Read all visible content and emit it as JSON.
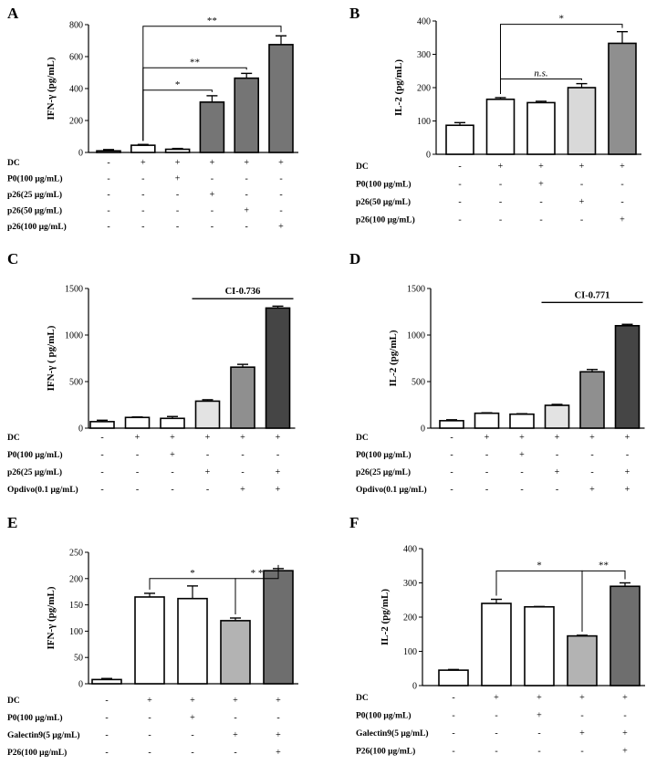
{
  "chart_data": [
    {
      "id": "A",
      "type": "bar",
      "ylabel": "IFN-γ (pg/mL)",
      "ylim": [
        0,
        800
      ],
      "yticks": [
        0,
        200,
        400,
        600,
        800
      ],
      "values": [
        10,
        45,
        20,
        315,
        465,
        675
      ],
      "errors": [
        8,
        5,
        5,
        40,
        30,
        55
      ],
      "colors": [
        "#ffffff",
        "#ffffff",
        "#ffffff",
        "#757575",
        "#757575",
        "#757575"
      ],
      "conditions": [
        {
          "label": "DC",
          "signs": [
            "-",
            "+",
            "+",
            "+",
            "+",
            "+"
          ]
        },
        {
          "label": "P0(100 μg/mL)",
          "signs": [
            "-",
            "-",
            "+",
            "-",
            "-",
            "-"
          ]
        },
        {
          "label": "p26(25 μg/mL)",
          "signs": [
            "-",
            "-",
            "-",
            "+",
            "-",
            "-"
          ]
        },
        {
          "label": "p26(50 μg/mL)",
          "signs": [
            "-",
            "-",
            "-",
            "-",
            "+",
            "-"
          ]
        },
        {
          "label": "p26(100 μg/mL)",
          "signs": [
            "-",
            "-",
            "-",
            "-",
            "-",
            "+"
          ]
        }
      ],
      "brackets": [
        {
          "from": 1,
          "to": 5,
          "level": 790,
          "label": "**"
        },
        {
          "from": 1,
          "to": 4,
          "level": 530,
          "label": "**"
        },
        {
          "from": 1,
          "to": 3,
          "level": 390,
          "label": "*"
        }
      ]
    },
    {
      "id": "B",
      "type": "bar",
      "ylabel": "IL-2 (pg/mL)",
      "ylim": [
        0,
        400
      ],
      "yticks": [
        0,
        100,
        200,
        300,
        400
      ],
      "values": [
        87,
        165,
        155,
        200,
        333
      ],
      "errors": [
        8,
        5,
        4,
        12,
        35
      ],
      "colors": [
        "#ffffff",
        "#ffffff",
        "#ffffff",
        "#d9d9d9",
        "#8f8f8f"
      ],
      "conditions": [
        {
          "label": "DC",
          "signs": [
            "-",
            "+",
            "+",
            "+",
            "+"
          ]
        },
        {
          "label": "P0(100 μg/mL)",
          "signs": [
            "-",
            "-",
            "+",
            "-",
            "-"
          ]
        },
        {
          "label": "p26(50 μg/mL)",
          "signs": [
            "-",
            "-",
            "-",
            "+",
            "-"
          ]
        },
        {
          "label": "p26(100 μg/mL)",
          "signs": [
            "-",
            "-",
            "-",
            "-",
            "+"
          ]
        }
      ],
      "brackets": [
        {
          "from": 1,
          "to": 4,
          "level": 390,
          "label": "*"
        },
        {
          "from": 1,
          "to": 3,
          "level": 226,
          "label": "n.s."
        }
      ]
    },
    {
      "id": "C",
      "type": "bar",
      "ylabel": "IFN-γ ( pg/mL)",
      "ylim": [
        0,
        1500
      ],
      "yticks": [
        0,
        500,
        1000,
        1500
      ],
      "values": [
        70,
        115,
        105,
        290,
        655,
        1290
      ],
      "errors": [
        15,
        5,
        20,
        15,
        30,
        20
      ],
      "colors": [
        "#ffffff",
        "#ffffff",
        "#ffffff",
        "#e3e3e3",
        "#8f8f8f",
        "#454545"
      ],
      "conditions": [
        {
          "label": "DC",
          "signs": [
            "-",
            "+",
            "+",
            "+",
            "+",
            "+"
          ]
        },
        {
          "label": "P0(100 μg/mL)",
          "signs": [
            "-",
            "-",
            "+",
            "-",
            "-",
            "-"
          ]
        },
        {
          "label": "p26(25 μg/mL)",
          "signs": [
            "-",
            "-",
            "-",
            "+",
            "-",
            "+"
          ]
        },
        {
          "label": "Opdivo(0.1 μg/mL)",
          "signs": [
            "-",
            "-",
            "-",
            "-",
            "+",
            "+"
          ]
        }
      ],
      "ci": {
        "from": 3,
        "to": 5,
        "label": "CI-0.736",
        "level": 1390
      }
    },
    {
      "id": "D",
      "type": "bar",
      "ylabel": "IL-2 (pg/mL)",
      "ylim": [
        0,
        1500
      ],
      "yticks": [
        0,
        500,
        1000,
        1500
      ],
      "values": [
        80,
        160,
        150,
        245,
        605,
        1100
      ],
      "errors": [
        10,
        5,
        5,
        10,
        25,
        15
      ],
      "colors": [
        "#ffffff",
        "#ffffff",
        "#ffffff",
        "#e3e3e3",
        "#8f8f8f",
        "#454545"
      ],
      "conditions": [
        {
          "label": "DC",
          "signs": [
            "-",
            "+",
            "+",
            "+",
            "+",
            "+"
          ]
        },
        {
          "label": "P0(100 μg/mL)",
          "signs": [
            "-",
            "-",
            "+",
            "-",
            "-",
            "-"
          ]
        },
        {
          "label": "p26(25 μg/mL)",
          "signs": [
            "-",
            "-",
            "-",
            "+",
            "-",
            "+"
          ]
        },
        {
          "label": "Opdivo(0.1 μg/mL)",
          "signs": [
            "-",
            "-",
            "-",
            "-",
            "+",
            "+"
          ]
        }
      ],
      "ci": {
        "from": 3,
        "to": 5,
        "label": "CI-0.771",
        "level": 1350
      }
    },
    {
      "id": "E",
      "type": "bar",
      "ylabel": "IFN-γ (pg/mL)",
      "ylim": [
        0,
        250
      ],
      "yticks": [
        0,
        50,
        100,
        150,
        200,
        250
      ],
      "values": [
        8,
        165,
        162,
        120,
        215
      ],
      "errors": [
        2,
        7,
        24,
        5,
        4
      ],
      "colors": [
        "#ffffff",
        "#ffffff",
        "#ffffff",
        "#b3b3b3",
        "#6e6e6e"
      ],
      "conditions": [
        {
          "label": "DC",
          "signs": [
            "-",
            "+",
            "+",
            "+",
            "+"
          ]
        },
        {
          "label": "P0(100 μg/mL)",
          "signs": [
            "-",
            "-",
            "+",
            "-",
            "-"
          ]
        },
        {
          "label": "Galectin9(5 μg/mL)",
          "signs": [
            "-",
            "-",
            "-",
            "+",
            "+"
          ]
        },
        {
          "label": "P26(100 μg/mL)",
          "signs": [
            "-",
            "-",
            "-",
            "-",
            "+"
          ]
        }
      ],
      "brackets": [
        {
          "from": 1,
          "to": 3,
          "level": 200,
          "label": "*"
        },
        {
          "from": 3,
          "to": 4,
          "level": 200,
          "label": "* *"
        }
      ]
    },
    {
      "id": "F",
      "type": "bar",
      "ylabel": "IL-2 (pg/mL)",
      "ylim": [
        0,
        400
      ],
      "yticks": [
        0,
        100,
        200,
        300,
        400
      ],
      "values": [
        45,
        240,
        230,
        145,
        290
      ],
      "errors": [
        2,
        12,
        1,
        2,
        10
      ],
      "colors": [
        "#ffffff",
        "#ffffff",
        "#ffffff",
        "#b3b3b3",
        "#6e6e6e"
      ],
      "conditions": [
        {
          "label": "DC",
          "signs": [
            "-",
            "+",
            "+",
            "+",
            "+"
          ]
        },
        {
          "label": "P0(100 μg/mL)",
          "signs": [
            "-",
            "-",
            "+",
            "-",
            "-"
          ]
        },
        {
          "label": "Galectin9(5 μg/mL)",
          "signs": [
            "-",
            "-",
            "-",
            "+",
            "+"
          ]
        },
        {
          "label": "P26(100 μg/mL)",
          "signs": [
            "-",
            "-",
            "-",
            "-",
            "+"
          ]
        }
      ],
      "brackets": [
        {
          "from": 1,
          "to": 3,
          "level": 335,
          "label": "*"
        },
        {
          "from": 3,
          "to": 4,
          "level": 335,
          "label": "**"
        }
      ]
    }
  ]
}
